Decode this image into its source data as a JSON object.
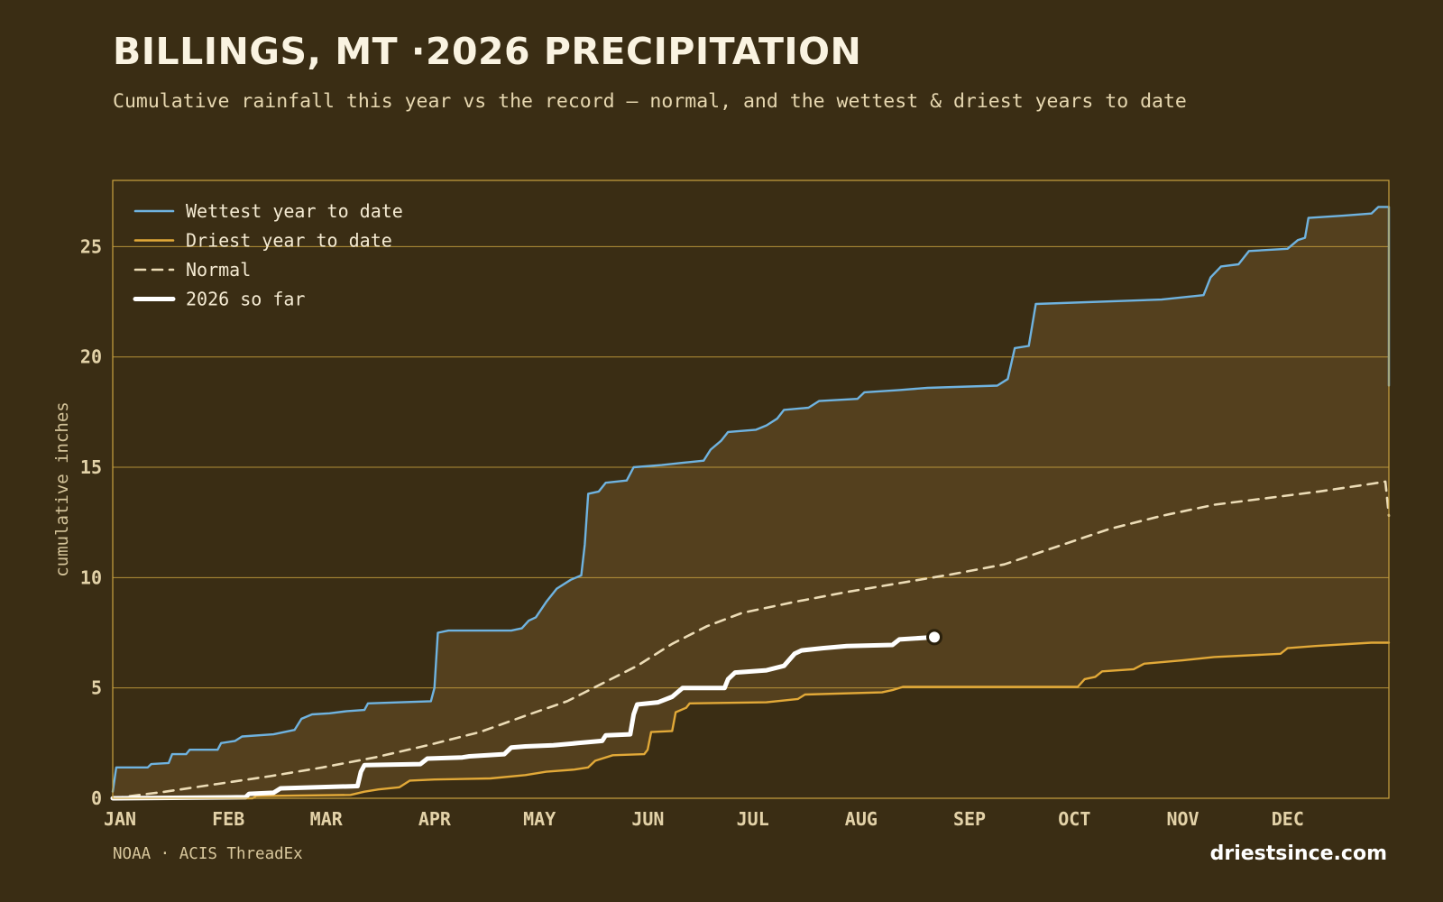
{
  "header": {
    "title": "BILLINGS, MT ·2026 PRECIPITATION",
    "subtitle": "Cumulative rainfall this year vs the record — normal, and the wettest & driest years to date"
  },
  "footer": {
    "source": "NOAA · ACIS ThreadEx",
    "brand": "driestsince.com"
  },
  "colors": {
    "background": "#3a2d14",
    "band_fill": "#54401e",
    "frame": "#c9a23f",
    "grid": "#c9a23f",
    "wettest": "#6fb3e0",
    "driest": "#e2a938",
    "normal": "#ecdcb6",
    "current": "#ffffff"
  },
  "chart_data": {
    "type": "line",
    "ylabel": "cumulative inches",
    "ylim": [
      0,
      28
    ],
    "yticks": [
      0,
      5,
      10,
      15,
      20,
      25
    ],
    "xlim": [
      0,
      365
    ],
    "xticks": [
      {
        "label": "JAN",
        "day": 0
      },
      {
        "label": "FEB",
        "day": 31
      },
      {
        "label": "MAR",
        "day": 59
      },
      {
        "label": "APR",
        "day": 90
      },
      {
        "label": "MAY",
        "day": 120
      },
      {
        "label": "JUN",
        "day": 151
      },
      {
        "label": "JUL",
        "day": 181
      },
      {
        "label": "AUG",
        "day": 212
      },
      {
        "label": "SEP",
        "day": 243
      },
      {
        "label": "OCT",
        "day": 273
      },
      {
        "label": "NOV",
        "day": 304
      },
      {
        "label": "DEC",
        "day": 334
      }
    ],
    "grid": true,
    "legend_position": "top-left",
    "band": {
      "between": [
        "Driest year to date",
        "Wettest year to date"
      ]
    },
    "series": [
      {
        "name": "Wettest year to date",
        "style": "solid",
        "points": [
          [
            0,
            0.3
          ],
          [
            1,
            1.4
          ],
          [
            10,
            1.4
          ],
          [
            11,
            1.55
          ],
          [
            16,
            1.6
          ],
          [
            17,
            2.0
          ],
          [
            21,
            2.0
          ],
          [
            22,
            2.2
          ],
          [
            30,
            2.2
          ],
          [
            31,
            2.5
          ],
          [
            35,
            2.6
          ],
          [
            37,
            2.8
          ],
          [
            46,
            2.9
          ],
          [
            52,
            3.1
          ],
          [
            54,
            3.6
          ],
          [
            57,
            3.8
          ],
          [
            62,
            3.85
          ],
          [
            67,
            3.95
          ],
          [
            72,
            4.0
          ],
          [
            73,
            4.3
          ],
          [
            91,
            4.4
          ],
          [
            92,
            5.0
          ],
          [
            93,
            7.5
          ],
          [
            96,
            7.6
          ],
          [
            114,
            7.6
          ],
          [
            117,
            7.7
          ],
          [
            119,
            8.05
          ],
          [
            121,
            8.2
          ],
          [
            124,
            8.9
          ],
          [
            127,
            9.5
          ],
          [
            131,
            9.9
          ],
          [
            134,
            10.1
          ],
          [
            135,
            11.5
          ],
          [
            136,
            13.8
          ],
          [
            139,
            13.9
          ],
          [
            141,
            14.3
          ],
          [
            147,
            14.4
          ],
          [
            149,
            15.0
          ],
          [
            157,
            15.1
          ],
          [
            163,
            15.2
          ],
          [
            169,
            15.3
          ],
          [
            171,
            15.8
          ],
          [
            174,
            16.2
          ],
          [
            176,
            16.6
          ],
          [
            184,
            16.7
          ],
          [
            187,
            16.9
          ],
          [
            190,
            17.2
          ],
          [
            192,
            17.6
          ],
          [
            199,
            17.7
          ],
          [
            202,
            18.0
          ],
          [
            213,
            18.1
          ],
          [
            215,
            18.4
          ],
          [
            225,
            18.5
          ],
          [
            233,
            18.6
          ],
          [
            253,
            18.7
          ],
          [
            256,
            19.0
          ],
          [
            258,
            20.4
          ],
          [
            262,
            20.5
          ],
          [
            264,
            22.4
          ],
          [
            300,
            22.6
          ],
          [
            312,
            22.8
          ],
          [
            314,
            23.6
          ],
          [
            317,
            24.1
          ],
          [
            322,
            24.2
          ],
          [
            325,
            24.8
          ],
          [
            336,
            24.9
          ],
          [
            339,
            25.3
          ],
          [
            341,
            25.4
          ],
          [
            342,
            26.3
          ],
          [
            352,
            26.4
          ],
          [
            360,
            26.5
          ],
          [
            362,
            26.8
          ],
          [
            365,
            26.8
          ],
          [
            365,
            18.7
          ]
        ]
      },
      {
        "name": "Driest year to date",
        "style": "solid",
        "points": [
          [
            0,
            0
          ],
          [
            40,
            0
          ],
          [
            41,
            0.1
          ],
          [
            68,
            0.15
          ],
          [
            72,
            0.3
          ],
          [
            76,
            0.4
          ],
          [
            82,
            0.5
          ],
          [
            85,
            0.8
          ],
          [
            92,
            0.85
          ],
          [
            108,
            0.9
          ],
          [
            118,
            1.05
          ],
          [
            124,
            1.2
          ],
          [
            132,
            1.3
          ],
          [
            136,
            1.4
          ],
          [
            138,
            1.7
          ],
          [
            143,
            1.95
          ],
          [
            152,
            2.0
          ],
          [
            153,
            2.2
          ],
          [
            154,
            3.0
          ],
          [
            160,
            3.05
          ],
          [
            161,
            3.9
          ],
          [
            164,
            4.1
          ],
          [
            165,
            4.3
          ],
          [
            187,
            4.35
          ],
          [
            196,
            4.5
          ],
          [
            198,
            4.7
          ],
          [
            220,
            4.8
          ],
          [
            223,
            4.9
          ],
          [
            226,
            5.05
          ],
          [
            276,
            5.05
          ],
          [
            278,
            5.4
          ],
          [
            281,
            5.5
          ],
          [
            283,
            5.75
          ],
          [
            292,
            5.85
          ],
          [
            295,
            6.1
          ],
          [
            306,
            6.25
          ],
          [
            315,
            6.4
          ],
          [
            334,
            6.55
          ],
          [
            336,
            6.8
          ],
          [
            344,
            6.9
          ],
          [
            360,
            7.05
          ],
          [
            365,
            7.05
          ]
        ]
      },
      {
        "name": "Normal",
        "style": "dashed",
        "points": [
          [
            0,
            0
          ],
          [
            15,
            0.3
          ],
          [
            30,
            0.65
          ],
          [
            45,
            1.0
          ],
          [
            60,
            1.4
          ],
          [
            75,
            1.85
          ],
          [
            90,
            2.4
          ],
          [
            105,
            3.0
          ],
          [
            120,
            3.85
          ],
          [
            130,
            4.4
          ],
          [
            140,
            5.2
          ],
          [
            150,
            6.0
          ],
          [
            160,
            7.0
          ],
          [
            170,
            7.8
          ],
          [
            180,
            8.4
          ],
          [
            195,
            8.9
          ],
          [
            210,
            9.35
          ],
          [
            225,
            9.75
          ],
          [
            240,
            10.15
          ],
          [
            255,
            10.6
          ],
          [
            270,
            11.4
          ],
          [
            285,
            12.2
          ],
          [
            300,
            12.8
          ],
          [
            315,
            13.3
          ],
          [
            330,
            13.6
          ],
          [
            345,
            13.9
          ],
          [
            360,
            14.25
          ],
          [
            364,
            14.35
          ],
          [
            365,
            12.8
          ]
        ]
      },
      {
        "name": "2026 so far",
        "style": "bold",
        "end_marker": true,
        "points": [
          [
            0,
            0
          ],
          [
            38,
            0.05
          ],
          [
            39,
            0.2
          ],
          [
            46,
            0.25
          ],
          [
            48,
            0.45
          ],
          [
            70,
            0.55
          ],
          [
            71,
            1.2
          ],
          [
            72,
            1.5
          ],
          [
            88,
            1.55
          ],
          [
            90,
            1.8
          ],
          [
            100,
            1.85
          ],
          [
            102,
            1.9
          ],
          [
            112,
            2.0
          ],
          [
            114,
            2.3
          ],
          [
            118,
            2.35
          ],
          [
            126,
            2.4
          ],
          [
            133,
            2.5
          ],
          [
            140,
            2.6
          ],
          [
            141,
            2.85
          ],
          [
            148,
            2.9
          ],
          [
            149,
            3.8
          ],
          [
            150,
            4.25
          ],
          [
            156,
            4.35
          ],
          [
            160,
            4.6
          ],
          [
            163,
            5.0
          ],
          [
            175,
            5.0
          ],
          [
            176,
            5.4
          ],
          [
            178,
            5.7
          ],
          [
            187,
            5.8
          ],
          [
            192,
            6.0
          ],
          [
            195,
            6.55
          ],
          [
            197,
            6.7
          ],
          [
            203,
            6.8
          ],
          [
            210,
            6.9
          ],
          [
            223,
            6.95
          ],
          [
            225,
            7.2
          ],
          [
            235,
            7.3
          ]
        ]
      }
    ]
  }
}
